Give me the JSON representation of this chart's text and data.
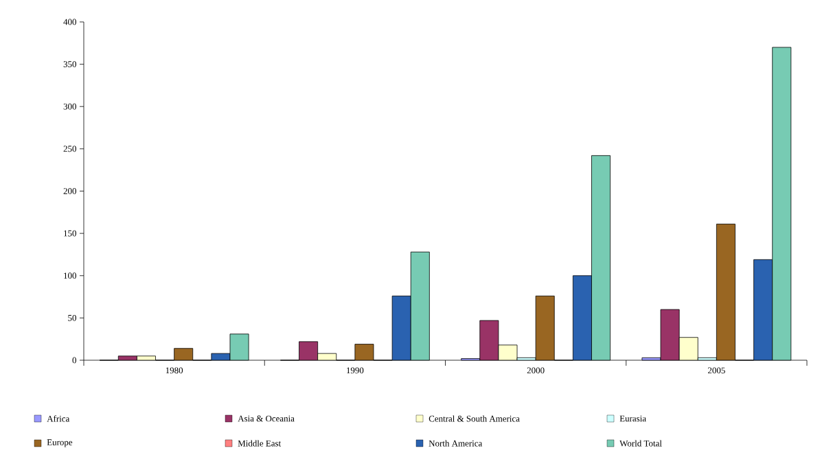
{
  "chart_data": {
    "type": "bar",
    "categories": [
      "1980",
      "1990",
      "2000",
      "2005"
    ],
    "series": [
      {
        "name": "Africa",
        "color": "#9999ff",
        "values": [
          0,
          0,
          2,
          3
        ]
      },
      {
        "name": "Asia & Oceania",
        "color": "#993366",
        "values": [
          5,
          22,
          47,
          60
        ]
      },
      {
        "name": "Central & South America",
        "color": "#ffffcc",
        "values": [
          5,
          8,
          18,
          27
        ]
      },
      {
        "name": "Eurasia",
        "color": "#ccffff",
        "values": [
          0,
          0,
          3,
          3
        ]
      },
      {
        "name": "Europe",
        "color": "#996622",
        "values": [
          14,
          19,
          76,
          161
        ]
      },
      {
        "name": "Middle East",
        "color": "#ff8080",
        "values": [
          0,
          0,
          0,
          0
        ]
      },
      {
        "name": "North America",
        "color": "#2a62b0",
        "values": [
          8,
          76,
          100,
          119
        ]
      },
      {
        "name": "World Total",
        "color": "#77cbb3",
        "values": [
          31,
          128,
          242,
          370
        ]
      }
    ],
    "ylim": [
      0,
      400
    ],
    "yticks": [
      0,
      50,
      100,
      150,
      200,
      250,
      300,
      350,
      400
    ],
    "grid": false,
    "legend": "bottom"
  }
}
